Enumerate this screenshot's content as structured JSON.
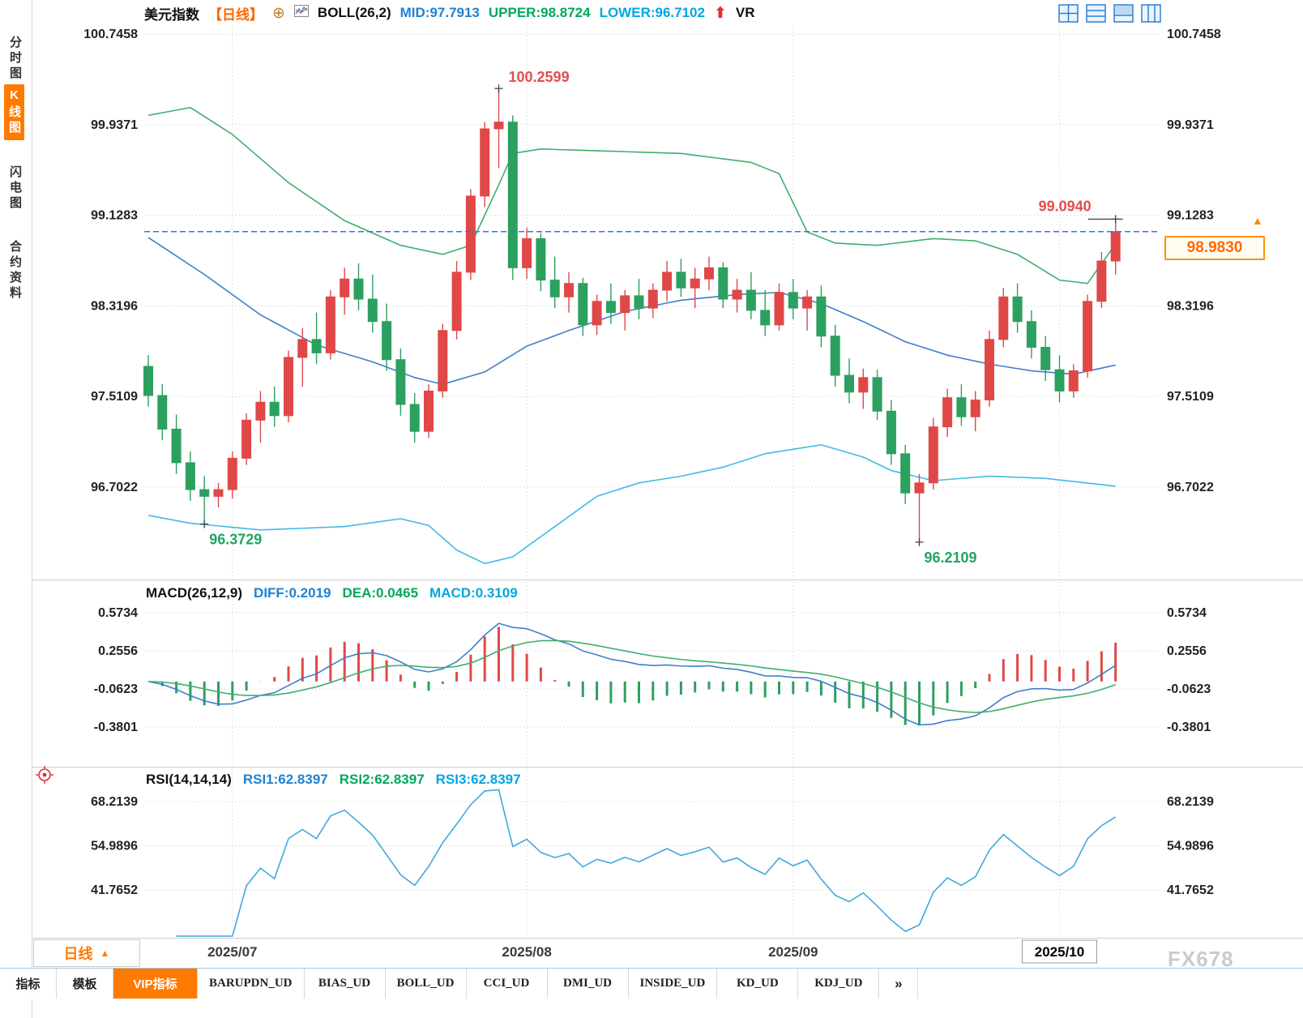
{
  "header": {
    "symbol": "美元指数",
    "period_tag": "【日线】",
    "boll_label": "BOLL(26,2)",
    "mid": "MID:97.7913",
    "upper": "UPPER:98.8724",
    "lower": "LOWER:96.7102",
    "vr": "VR"
  },
  "sidebar": {
    "items": [
      {
        "label": "分时图",
        "active": false
      },
      {
        "label": "K线图",
        "active": true
      },
      {
        "label": "闪电图",
        "active": false
      },
      {
        "label": "合约资料",
        "active": false
      }
    ]
  },
  "price_badge": {
    "value": "98.9830"
  },
  "period_button": {
    "label": "日线"
  },
  "macd_header": {
    "title": "MACD(26,12,9)",
    "diff": "DIFF:0.2019",
    "dea": "DEA:0.0465",
    "macd": "MACD:0.3109"
  },
  "rsi_header": {
    "title": "RSI(14,14,14)",
    "rsi1": "RSI1:62.8397",
    "rsi2": "RSI2:62.8397",
    "rsi3": "RSI3:62.8397"
  },
  "bottom_tabs": [
    "指标",
    "模板",
    "VIP指标",
    "BARUPDN_UD",
    "BIAS_UD",
    "BOLL_UD",
    "CCI_UD",
    "DMI_UD",
    "INSIDE_UD",
    "KD_UD",
    "KDJ_UD",
    "»"
  ],
  "watermark": "FX678",
  "chart_data": {
    "type": "candlestick",
    "symbol": "美元指数",
    "period": "日线",
    "colors": {
      "up": "#e04848",
      "down": "#2ca05f",
      "boll_upper": "#3fae6e",
      "boll_mid": "#3f7fc9",
      "boll_lower": "#41b9e8",
      "diff": "#3f7fc9",
      "dea": "#3fae6e",
      "rsi": "#3fa9dc",
      "grid": "#d8d8d8",
      "ann_red": "#e24e4e",
      "ann_green": "#21a463",
      "last_price_line": "#2e7bd6"
    },
    "main": {
      "y_ticks": [
        "100.7458",
        "99.9371",
        "99.1283",
        "98.3196",
        "97.5109",
        "96.7022"
      ],
      "last_price": 98.983,
      "candles": [
        [
          97.78,
          97.88,
          97.42,
          97.52
        ],
        [
          97.52,
          97.62,
          97.12,
          97.22
        ],
        [
          97.22,
          97.35,
          96.82,
          96.92
        ],
        [
          96.92,
          97.02,
          96.58,
          96.68
        ],
        [
          96.68,
          96.8,
          96.3729,
          96.62
        ],
        [
          96.62,
          96.74,
          96.52,
          96.68
        ],
        [
          96.68,
          97.02,
          96.6,
          96.96
        ],
        [
          96.96,
          97.36,
          96.9,
          97.3
        ],
        [
          97.3,
          97.56,
          97.1,
          97.46
        ],
        [
          97.46,
          97.6,
          97.24,
          97.34
        ],
        [
          97.34,
          97.92,
          97.28,
          97.86
        ],
        [
          97.86,
          98.12,
          97.6,
          98.02
        ],
        [
          98.02,
          98.26,
          97.8,
          97.9
        ],
        [
          97.9,
          98.46,
          97.84,
          98.4
        ],
        [
          98.4,
          98.66,
          98.24,
          98.56
        ],
        [
          98.56,
          98.7,
          98.28,
          98.38
        ],
        [
          98.38,
          98.6,
          98.08,
          98.18
        ],
        [
          98.18,
          98.34,
          97.74,
          97.84
        ],
        [
          97.84,
          97.94,
          97.34,
          97.44
        ],
        [
          97.44,
          97.54,
          97.1,
          97.2
        ],
        [
          97.2,
          97.62,
          97.14,
          97.56
        ],
        [
          97.56,
          98.16,
          97.5,
          98.1
        ],
        [
          98.1,
          98.72,
          98.02,
          98.62
        ],
        [
          98.62,
          99.36,
          98.55,
          99.3
        ],
        [
          99.3,
          99.96,
          99.2,
          99.9
        ],
        [
          99.9,
          100.2599,
          99.55,
          99.96
        ],
        [
          99.96,
          100.02,
          98.55,
          98.66
        ],
        [
          98.66,
          99.02,
          98.56,
          98.92
        ],
        [
          98.92,
          98.97,
          98.45,
          98.55
        ],
        [
          98.55,
          98.76,
          98.3,
          98.4
        ],
        [
          98.4,
          98.62,
          98.26,
          98.52
        ],
        [
          98.52,
          98.57,
          98.05,
          98.15
        ],
        [
          98.15,
          98.42,
          98.06,
          98.36
        ],
        [
          98.36,
          98.52,
          98.16,
          98.26
        ],
        [
          98.26,
          98.46,
          98.1,
          98.41
        ],
        [
          98.41,
          98.56,
          98.2,
          98.3
        ],
        [
          98.3,
          98.52,
          98.21,
          98.46
        ],
        [
          98.46,
          98.72,
          98.36,
          98.62
        ],
        [
          98.62,
          98.74,
          98.4,
          98.48
        ],
        [
          98.48,
          98.66,
          98.3,
          98.56
        ],
        [
          98.56,
          98.76,
          98.46,
          98.66
        ],
        [
          98.66,
          98.71,
          98.3,
          98.38
        ],
        [
          98.38,
          98.56,
          98.26,
          98.46
        ],
        [
          98.46,
          98.62,
          98.2,
          98.28
        ],
        [
          98.28,
          98.46,
          98.05,
          98.15
        ],
        [
          98.15,
          98.52,
          98.1,
          98.44
        ],
        [
          98.44,
          98.56,
          98.2,
          98.3
        ],
        [
          98.3,
          98.46,
          98.1,
          98.4
        ],
        [
          98.4,
          98.5,
          97.95,
          98.05
        ],
        [
          98.05,
          98.15,
          97.6,
          97.7
        ],
        [
          97.7,
          97.85,
          97.45,
          97.55
        ],
        [
          97.55,
          97.76,
          97.4,
          97.68
        ],
        [
          97.68,
          97.75,
          97.3,
          97.38
        ],
        [
          97.38,
          97.48,
          96.9,
          97.0
        ],
        [
          97.0,
          97.08,
          96.55,
          96.65
        ],
        [
          96.65,
          96.82,
          96.2109,
          96.74
        ],
        [
          96.74,
          97.32,
          96.68,
          97.24
        ],
        [
          97.24,
          97.58,
          97.15,
          97.5
        ],
        [
          97.5,
          97.62,
          97.25,
          97.33
        ],
        [
          97.33,
          97.56,
          97.2,
          97.48
        ],
        [
          97.48,
          98.1,
          97.42,
          98.02
        ],
        [
          98.02,
          98.48,
          97.95,
          98.4
        ],
        [
          98.4,
          98.52,
          98.08,
          98.18
        ],
        [
          98.18,
          98.28,
          97.85,
          97.95
        ],
        [
          97.95,
          98.05,
          97.65,
          97.75
        ],
        [
          97.75,
          97.88,
          97.46,
          97.56
        ],
        [
          97.56,
          97.8,
          97.5,
          97.74
        ],
        [
          97.74,
          98.42,
          97.68,
          98.36
        ],
        [
          98.36,
          98.8,
          98.3,
          98.72
        ],
        [
          98.72,
          99.094,
          98.6,
          98.983
        ]
      ],
      "boll_upper_keypoints": [
        [
          0,
          100.02
        ],
        [
          3,
          100.09
        ],
        [
          6,
          99.85
        ],
        [
          10,
          99.42
        ],
        [
          14,
          99.08
        ],
        [
          18,
          98.86
        ],
        [
          21,
          98.78
        ],
        [
          23,
          98.86
        ],
        [
          25,
          99.4
        ],
        [
          26,
          99.68
        ],
        [
          28,
          99.72
        ],
        [
          38,
          99.68
        ],
        [
          43,
          99.6
        ],
        [
          45,
          99.5
        ],
        [
          47,
          98.98
        ],
        [
          49,
          98.88
        ],
        [
          52,
          98.86
        ],
        [
          56,
          98.92
        ],
        [
          59,
          98.9
        ],
        [
          62,
          98.78
        ],
        [
          65,
          98.55
        ],
        [
          67,
          98.52
        ],
        [
          69,
          98.8724
        ]
      ],
      "boll_mid_keypoints": [
        [
          0,
          98.93
        ],
        [
          4,
          98.6
        ],
        [
          8,
          98.24
        ],
        [
          12,
          97.97
        ],
        [
          16,
          97.82
        ],
        [
          19,
          97.68
        ],
        [
          21,
          97.62
        ],
        [
          24,
          97.73
        ],
        [
          27,
          97.96
        ],
        [
          30,
          98.1
        ],
        [
          34,
          98.27
        ],
        [
          38,
          98.37
        ],
        [
          42,
          98.42
        ],
        [
          45,
          98.44
        ],
        [
          48,
          98.34
        ],
        [
          51,
          98.18
        ],
        [
          54,
          98.0
        ],
        [
          57,
          97.88
        ],
        [
          60,
          97.8
        ],
        [
          63,
          97.74
        ],
        [
          66,
          97.71
        ],
        [
          69,
          97.7913
        ]
      ],
      "boll_lower_keypoints": [
        [
          0,
          96.45
        ],
        [
          3,
          96.38
        ],
        [
          8,
          96.32
        ],
        [
          14,
          96.35
        ],
        [
          18,
          96.42
        ],
        [
          20,
          96.36
        ],
        [
          22,
          96.14
        ],
        [
          24,
          96.02
        ],
        [
          26,
          96.08
        ],
        [
          29,
          96.35
        ],
        [
          32,
          96.62
        ],
        [
          35,
          96.74
        ],
        [
          38,
          96.8
        ],
        [
          41,
          96.88
        ],
        [
          44,
          97.0
        ],
        [
          48,
          97.08
        ],
        [
          51,
          96.97
        ],
        [
          53,
          96.85
        ],
        [
          56,
          96.76
        ],
        [
          60,
          96.8
        ],
        [
          64,
          96.78
        ],
        [
          69,
          96.7102
        ]
      ],
      "annotations": [
        {
          "text": "100.2599",
          "index": 25,
          "price": 100.2599,
          "color": "red",
          "pos": "above"
        },
        {
          "text": "96.3729",
          "index": 4,
          "price": 96.3729,
          "color": "green",
          "pos": "below"
        },
        {
          "text": "96.2109",
          "index": 55,
          "price": 96.2109,
          "color": "green",
          "pos": "below"
        },
        {
          "text": "99.0940",
          "index": 69,
          "price": 99.094,
          "color": "red",
          "pos": "above-left"
        }
      ]
    },
    "macd": {
      "y_ticks": [
        "0.5734",
        "0.2556",
        "-0.0623",
        "-0.3801"
      ],
      "fast": 12,
      "slow": 26,
      "signal": 9
    },
    "rsi": {
      "y_ticks": [
        "68.2139",
        "54.9896",
        "41.7652"
      ],
      "period": 14
    },
    "x_axis": {
      "labels": [
        {
          "text": "2025/07",
          "index": 6,
          "boxed": false
        },
        {
          "text": "2025/08",
          "index": 27,
          "boxed": false
        },
        {
          "text": "2025/09",
          "index": 46,
          "boxed": false
        },
        {
          "text": "2025/10",
          "index": 65,
          "boxed": true
        }
      ]
    }
  }
}
